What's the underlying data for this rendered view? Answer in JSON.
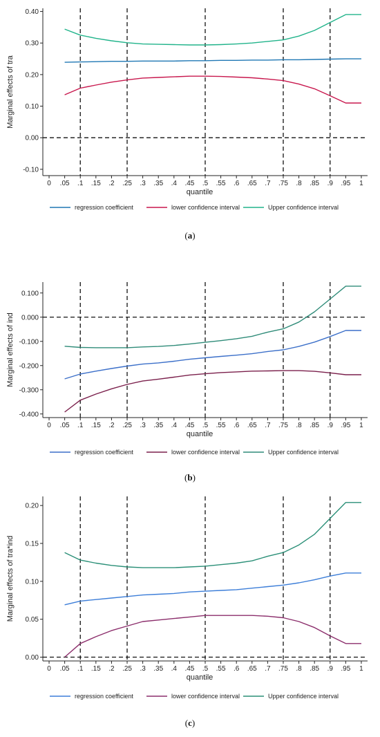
{
  "chart_data": [
    {
      "type": "line",
      "caption_letter": "a",
      "ylabel": "Marginal effects of tra",
      "xlabel": "quantile",
      "ylim": [
        -0.12,
        0.41
      ],
      "yticks": [
        -0.1,
        0.0,
        0.1,
        0.2,
        0.3,
        0.4
      ],
      "ytick_labels": [
        "-0.10",
        "0.00",
        "0.10",
        "0.20",
        "0.30",
        "0.40"
      ],
      "x": [
        0.05,
        0.1,
        0.15,
        0.2,
        0.25,
        0.3,
        0.35,
        0.4,
        0.45,
        0.5,
        0.55,
        0.6,
        0.65,
        0.7,
        0.75,
        0.8,
        0.85,
        0.9,
        0.95,
        1.0
      ],
      "xticks": [
        0,
        0.05,
        0.1,
        0.15,
        0.2,
        0.25,
        0.3,
        0.35,
        0.4,
        0.45,
        0.5,
        0.55,
        0.6,
        0.65,
        0.7,
        0.75,
        0.8,
        0.85,
        0.9,
        0.95,
        1
      ],
      "xtick_labels": [
        "0",
        ".05",
        ".1",
        ".15",
        ".2",
        ".25",
        ".3",
        ".35",
        ".4",
        ".45",
        ".5",
        ".55",
        ".6",
        ".65",
        ".7",
        ".75",
        ".8",
        ".85",
        ".9",
        ".95",
        "1"
      ],
      "xlim": [
        -0.02,
        1.02
      ],
      "vlines": [
        0.1,
        0.25,
        0.5,
        0.75,
        0.9
      ],
      "hline": 0,
      "series": [
        {
          "name": "regression coefficient",
          "color": "#1f77b4",
          "values": [
            0.239,
            0.24,
            0.241,
            0.242,
            0.242,
            0.243,
            0.243,
            0.243,
            0.244,
            0.244,
            0.245,
            0.245,
            0.246,
            0.246,
            0.247,
            0.247,
            0.248,
            0.249,
            0.25,
            0.25
          ]
        },
        {
          "name": "lower confidence interval",
          "color": "#c8174d",
          "values": [
            0.136,
            0.157,
            0.167,
            0.176,
            0.183,
            0.189,
            0.191,
            0.193,
            0.195,
            0.195,
            0.194,
            0.192,
            0.19,
            0.186,
            0.181,
            0.17,
            0.155,
            0.133,
            0.11,
            0.11
          ]
        },
        {
          "name": "Upper confidence interval",
          "color": "#20b38a",
          "values": [
            0.344,
            0.325,
            0.315,
            0.307,
            0.301,
            0.297,
            0.296,
            0.295,
            0.294,
            0.294,
            0.295,
            0.297,
            0.3,
            0.305,
            0.31,
            0.322,
            0.34,
            0.365,
            0.39,
            0.39
          ]
        }
      ]
    },
    {
      "type": "line",
      "caption_letter": "b",
      "ylabel": "Marginal effects of ind",
      "xlabel": "quantile",
      "ylim": [
        -0.415,
        0.145
      ],
      "yticks": [
        -0.4,
        -0.3,
        -0.2,
        -0.1,
        0.0,
        0.1
      ],
      "ytick_labels": [
        "-0.400",
        "-0.300",
        "-0.200",
        "-0.100",
        "0.000",
        "0.100"
      ],
      "x": [
        0.05,
        0.1,
        0.15,
        0.2,
        0.25,
        0.3,
        0.35,
        0.4,
        0.45,
        0.5,
        0.55,
        0.6,
        0.65,
        0.7,
        0.75,
        0.8,
        0.85,
        0.9,
        0.95,
        1.0
      ],
      "xticks": [
        0,
        0.05,
        0.1,
        0.15,
        0.2,
        0.25,
        0.3,
        0.35,
        0.4,
        0.45,
        0.5,
        0.55,
        0.6,
        0.65,
        0.7,
        0.75,
        0.8,
        0.85,
        0.9,
        0.95,
        1
      ],
      "xtick_labels": [
        "0",
        ".05",
        ".1",
        ".15",
        ".2",
        ".25",
        ".3",
        ".35",
        ".4",
        ".45",
        ".5",
        ".55",
        ".6",
        ".65",
        ".7",
        ".75",
        ".8",
        ".85",
        ".9",
        ".95",
        "1"
      ],
      "xlim": [
        -0.02,
        1.02
      ],
      "vlines": [
        0.1,
        0.25,
        0.5,
        0.75,
        0.9
      ],
      "hline": 0,
      "series": [
        {
          "name": "regression coefficient",
          "color": "#3b6fc9",
          "values": [
            -0.255,
            -0.235,
            -0.223,
            -0.212,
            -0.202,
            -0.194,
            -0.189,
            -0.182,
            -0.174,
            -0.168,
            -0.162,
            -0.157,
            -0.151,
            -0.142,
            -0.135,
            -0.121,
            -0.103,
            -0.08,
            -0.055,
            -0.055
          ]
        },
        {
          "name": "lower confidence interval",
          "color": "#7a1f4b",
          "values": [
            -0.392,
            -0.343,
            -0.318,
            -0.296,
            -0.278,
            -0.264,
            -0.256,
            -0.248,
            -0.239,
            -0.234,
            -0.229,
            -0.226,
            -0.223,
            -0.222,
            -0.221,
            -0.221,
            -0.224,
            -0.23,
            -0.238,
            -0.238
          ]
        },
        {
          "name": "Upper confidence interval",
          "color": "#2e8b78",
          "values": [
            -0.12,
            -0.125,
            -0.126,
            -0.126,
            -0.126,
            -0.123,
            -0.121,
            -0.117,
            -0.111,
            -0.104,
            -0.097,
            -0.089,
            -0.079,
            -0.062,
            -0.048,
            -0.02,
            0.022,
            0.075,
            0.128,
            0.128
          ]
        }
      ]
    },
    {
      "type": "line",
      "caption_letter": "c",
      "ylabel": "Marginal effects of tra*ind",
      "xlabel": "quantile",
      "ylim": [
        -0.005,
        0.212
      ],
      "yticks": [
        0.0,
        0.05,
        0.1,
        0.15,
        0.2
      ],
      "ytick_labels": [
        "0.00",
        "0.05",
        "0.10",
        "0.15",
        "0.20"
      ],
      "x": [
        0.05,
        0.1,
        0.15,
        0.2,
        0.25,
        0.3,
        0.35,
        0.4,
        0.45,
        0.5,
        0.55,
        0.6,
        0.65,
        0.7,
        0.75,
        0.8,
        0.85,
        0.9,
        0.95,
        1.0
      ],
      "xticks": [
        0,
        0.05,
        0.1,
        0.15,
        0.2,
        0.25,
        0.3,
        0.35,
        0.4,
        0.45,
        0.5,
        0.55,
        0.6,
        0.65,
        0.7,
        0.75,
        0.8,
        0.85,
        0.9,
        0.95,
        1
      ],
      "xtick_labels": [
        "0",
        ".05",
        ".1",
        ".15",
        ".2",
        ".25",
        ".3",
        ".35",
        ".4",
        ".45",
        ".5",
        ".55",
        ".6",
        ".65",
        ".7",
        ".75",
        ".8",
        ".85",
        ".9",
        ".95",
        "1"
      ],
      "xlim": [
        -0.02,
        1.02
      ],
      "vlines": [
        0.1,
        0.25,
        0.5,
        0.75,
        0.9
      ],
      "hline": 0,
      "series": [
        {
          "name": "regression coefficient",
          "color": "#3b7dd8",
          "values": [
            0.069,
            0.074,
            0.076,
            0.078,
            0.08,
            0.082,
            0.083,
            0.084,
            0.086,
            0.087,
            0.088,
            0.089,
            0.091,
            0.093,
            0.095,
            0.098,
            0.102,
            0.107,
            0.111,
            0.111
          ]
        },
        {
          "name": "lower confidence interval",
          "color": "#8b2d6b",
          "values": [
            0.0,
            0.018,
            0.027,
            0.035,
            0.041,
            0.047,
            0.049,
            0.051,
            0.053,
            0.055,
            0.055,
            0.055,
            0.055,
            0.054,
            0.052,
            0.047,
            0.039,
            0.028,
            0.018,
            0.018
          ]
        },
        {
          "name": "Upper confidence interval",
          "color": "#2a8f77",
          "values": [
            0.138,
            0.128,
            0.124,
            0.121,
            0.119,
            0.118,
            0.118,
            0.118,
            0.119,
            0.12,
            0.122,
            0.124,
            0.127,
            0.133,
            0.138,
            0.148,
            0.162,
            0.183,
            0.204,
            0.204
          ]
        }
      ]
    }
  ]
}
